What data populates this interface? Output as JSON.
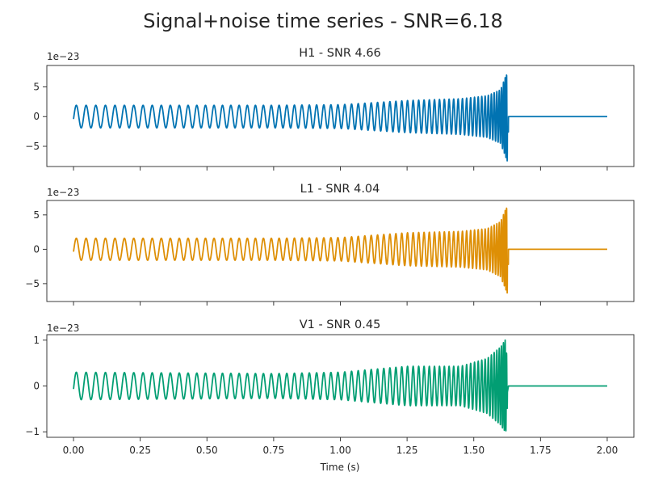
{
  "chart_data": {
    "type": "line",
    "title": "Signal+noise time series - SNR=6.18",
    "xlabel": "Time (s)",
    "xlim": [
      -0.1,
      2.1
    ],
    "xticks": [
      0.0,
      0.25,
      0.5,
      0.75,
      1.0,
      1.25,
      1.5,
      1.75,
      2.0
    ],
    "xtick_labels": [
      "0.00",
      "0.25",
      "0.50",
      "0.75",
      "1.00",
      "1.25",
      "1.50",
      "1.75",
      "2.00"
    ],
    "shared_x": true,
    "grid": false,
    "series_shape": {
      "start_freq_hz": 26,
      "merger_time_s": 1.63,
      "post_merger": "flat zero until 2.00 s"
    },
    "panels": [
      {
        "title": "H1 - SNR 4.66",
        "name": "H1",
        "snr": "4.66",
        "color": "#0173b2",
        "offset_label": "1e−23",
        "ylim": [
          -8.4,
          8.6
        ],
        "yticks": [
          -5,
          0,
          5
        ],
        "ytick_labels": [
          "−5",
          "0",
          "5"
        ],
        "envelope": [
          [
            0.0,
            1.9
          ],
          [
            0.5,
            1.9
          ],
          [
            0.75,
            1.9
          ],
          [
            1.0,
            2.0
          ],
          [
            1.25,
            2.7
          ],
          [
            1.45,
            3.0
          ],
          [
            1.55,
            3.5
          ],
          [
            1.6,
            4.5
          ],
          [
            1.63,
            8.0
          ],
          [
            1.64,
            0.0
          ]
        ]
      },
      {
        "title": "L1 - SNR 4.04",
        "name": "L1",
        "snr": "4.04",
        "color": "#de8f05",
        "offset_label": "1e−23",
        "ylim": [
          -7.6,
          7.1
        ],
        "yticks": [
          -5,
          0,
          5
        ],
        "ytick_labels": [
          "−5",
          "0",
          "5"
        ],
        "envelope": [
          [
            0.0,
            1.6
          ],
          [
            0.5,
            1.6
          ],
          [
            0.75,
            1.6
          ],
          [
            1.0,
            1.7
          ],
          [
            1.25,
            2.4
          ],
          [
            1.45,
            2.6
          ],
          [
            1.55,
            3.0
          ],
          [
            1.6,
            4.0
          ],
          [
            1.63,
            6.8
          ],
          [
            1.64,
            0.0
          ]
        ]
      },
      {
        "title": "V1 - SNR 0.45",
        "name": "V1",
        "snr": "0.45",
        "color": "#029e73",
        "offset_label": "1e−23",
        "ylim": [
          -1.12,
          1.12
        ],
        "yticks": [
          -1,
          0,
          1
        ],
        "ytick_labels": [
          "−1",
          "0",
          "1"
        ],
        "envelope": [
          [
            0.0,
            0.3
          ],
          [
            0.5,
            0.28
          ],
          [
            0.75,
            0.27
          ],
          [
            1.0,
            0.3
          ],
          [
            1.25,
            0.43
          ],
          [
            1.45,
            0.43
          ],
          [
            1.55,
            0.6
          ],
          [
            1.6,
            0.85
          ],
          [
            1.62,
            1.02
          ],
          [
            1.63,
            0.0
          ]
        ]
      }
    ]
  }
}
